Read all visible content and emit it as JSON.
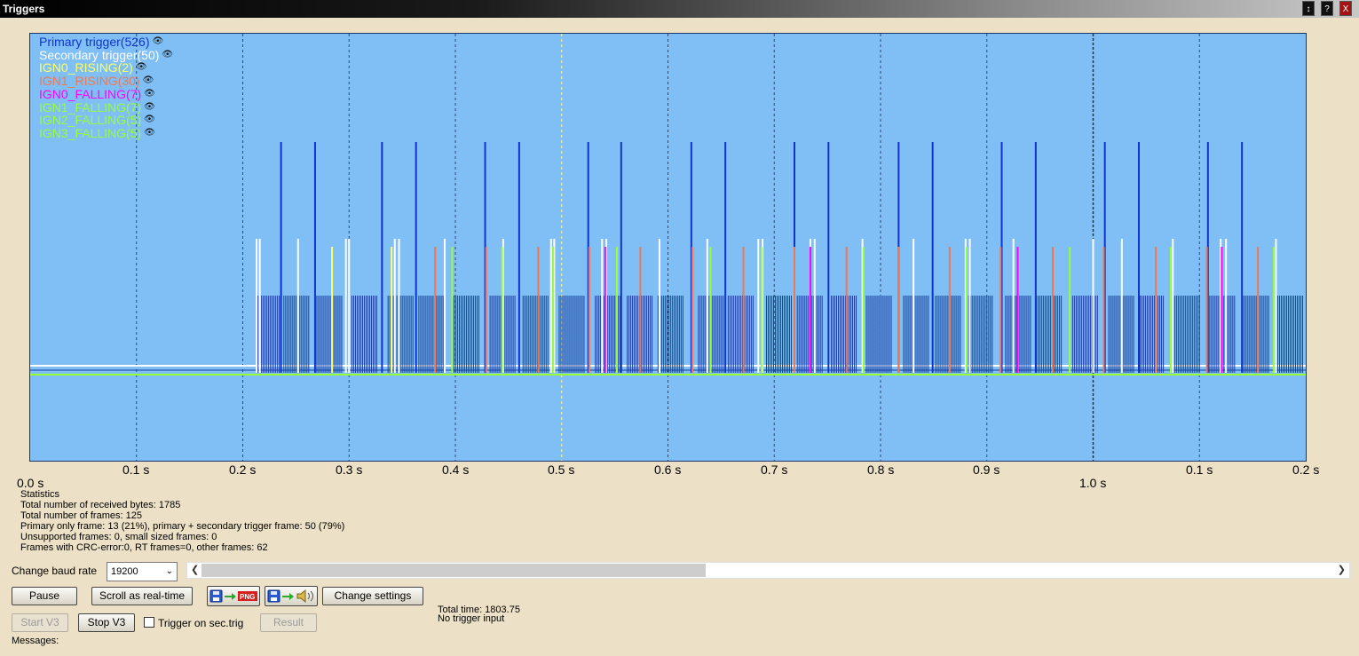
{
  "window": {
    "title": "Triggers",
    "buttons": [
      "↕",
      "?",
      "X"
    ]
  },
  "legend": [
    {
      "label": "Primary trigger(526)",
      "color": "#1133cc",
      "icon": "eye-icon"
    },
    {
      "label": "Secondary trigger(50)",
      "color": "#ffffff",
      "icon": "eye-icon"
    },
    {
      "label": "IGN0_RISING(2)",
      "color": "#ffff66",
      "icon": "eye-icon"
    },
    {
      "label": "IGN1_RISING(30)",
      "color": "#f07850",
      "icon": "eye-icon"
    },
    {
      "label": "IGN0_FALLING(7)",
      "color": "#ff00ff",
      "icon": "eye-icon"
    },
    {
      "label": "IGN1_FALLING(7)",
      "color": "#99ff33",
      "icon": "eye-icon"
    },
    {
      "label": "IGN2_FALLING(5)",
      "color": "#99ff33",
      "icon": "eye-icon"
    },
    {
      "label": "IGN3_FALLING(5)",
      "color": "#99ff33",
      "icon": "eye-icon"
    }
  ],
  "chart_data": {
    "type": "line",
    "x_ticks": [
      "0.0 s",
      "0.1 s",
      "0.2 s",
      "0.3 s",
      "0.4 s",
      "0.5 s",
      "0.6 s",
      "0.7 s",
      "0.8 s",
      "0.9 s",
      "1.0 s",
      "0.1 s",
      "0.2 s"
    ],
    "x_range_s": [
      0.0,
      1.2
    ],
    "grid": true,
    "background": "#7fbff5",
    "primary_burst_starts_s": [
      0.211,
      0.237,
      0.268,
      0.301,
      0.335,
      0.364,
      0.397,
      0.431,
      0.462,
      0.496,
      0.53,
      0.56,
      0.589,
      0.627,
      0.655,
      0.691,
      0.72,
      0.752,
      0.785,
      0.82,
      0.85,
      0.88,
      0.916,
      0.945,
      0.979,
      1.013,
      1.041,
      1.075,
      1.108,
      1.14,
      1.172
    ],
    "primary_tall_s": [
      0.236,
      0.268,
      0.331,
      0.363,
      0.428,
      0.46,
      0.525,
      0.556,
      0.622,
      0.654,
      0.719,
      0.751,
      0.817,
      0.849,
      0.914,
      0.946,
      1.011,
      1.043,
      1.108,
      1.14
    ],
    "secondary_s": [
      0.213,
      0.216,
      0.252,
      0.297,
      0.3,
      0.343,
      0.347,
      0.39,
      0.445,
      0.493,
      0.49,
      0.538,
      0.542,
      0.592,
      0.637,
      0.685,
      0.689,
      0.734,
      0.738,
      0.783,
      0.831,
      0.88,
      0.884,
      0.925,
      1.0,
      1.027,
      1.075,
      1.12,
      1.125,
      1.172
    ],
    "ign0_rising_s": [
      0.284,
      0.34
    ],
    "ign1_rising_s": [
      0.381,
      0.429,
      0.478,
      0.526,
      0.574,
      0.623,
      0.671,
      0.719,
      0.768,
      0.817,
      0.865,
      0.913,
      0.962,
      1.01,
      1.059,
      1.107,
      1.155
    ],
    "ign0_falling_s": [
      0.541,
      0.734,
      0.929,
      1.121
    ],
    "ign_falling_s": [
      0.397,
      0.444,
      0.492,
      0.552,
      0.64,
      0.688,
      0.784,
      0.881,
      0.978,
      1.073,
      1.17
    ]
  },
  "stats": {
    "heading": "Statistics",
    "lines": [
      "Total number of received bytes: 1785",
      "Total number of frames: 125",
      "Primary only frame: 13 (21%), primary + secondary trigger frame: 50 (79%)",
      "Unsupported frames: 0, small sized frames: 0",
      "Frames with CRC-error:0, RT frames=0, other frames: 62"
    ]
  },
  "controls": {
    "baud_label": "Change baud rate",
    "baud_value": "19200",
    "pause": "Pause",
    "scroll_realtime": "Scroll as real-time",
    "save_png_icon": "save-png-icon",
    "save_sound_icon": "save-sound-icon",
    "change_settings": "Change settings",
    "start_v3": "Start V3",
    "stop_v3": "Stop V3",
    "trigger_sec": "Trigger on sec.trig",
    "result": "Result",
    "total_time": "Total time: 1803.75",
    "trigger_input": "No trigger input",
    "messages": "Messages:"
  }
}
